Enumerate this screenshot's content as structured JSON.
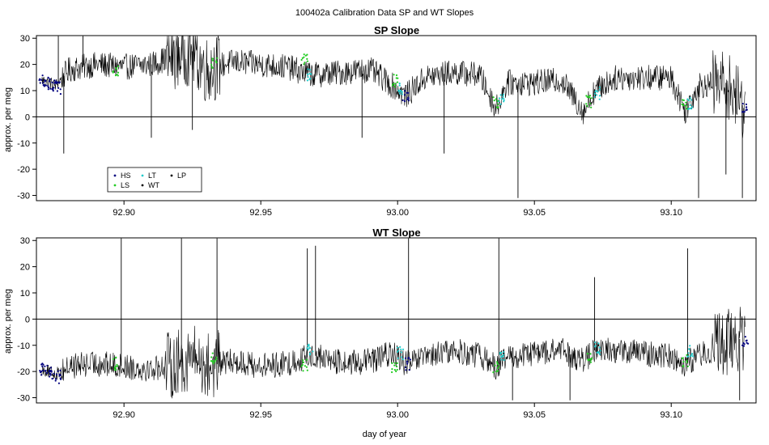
{
  "figure": {
    "suptitle": "100402a   Calibration Data SP and WT Slopes",
    "xlabel": "day of year"
  },
  "colors": {
    "HS": "#000080",
    "LS": "#22cc22",
    "LT": "#22cccc",
    "WT": "#000000",
    "LP": "#000000",
    "trace": "#000000",
    "axis": "#000000"
  },
  "legend": {
    "placement": "bottom-left of top panel",
    "entries": [
      {
        "label": "HS",
        "color": "#000080"
      },
      {
        "label": "LT",
        "color": "#22cccc"
      },
      {
        "label": "LP",
        "color": "#000000"
      },
      {
        "label": "LS",
        "color": "#22cc22"
      },
      {
        "label": "WT",
        "color": "#000000"
      }
    ]
  },
  "chart_data": [
    {
      "type": "line",
      "title": "SP Slope",
      "xlabel": "",
      "ylabel": "approx. per meg",
      "xlim": [
        92.868,
        93.131
      ],
      "ylim": [
        -32,
        31
      ],
      "xticks": [
        "92.90",
        "92.95",
        "93.00",
        "93.05",
        "93.10"
      ],
      "xtick_values": [
        92.9,
        92.95,
        93.0,
        93.05,
        93.1
      ],
      "yticks": [
        -30,
        -20,
        -10,
        0,
        10,
        20,
        30
      ],
      "hline": 0,
      "series": [
        {
          "type": "line",
          "x": [
            92.87,
            92.875,
            92.88,
            92.89,
            92.9,
            92.91,
            92.92,
            92.925,
            92.93,
            92.94,
            92.95,
            92.96,
            92.965,
            92.97,
            92.98,
            92.99,
            92.998,
            93.003,
            93.01,
            93.02,
            93.03,
            93.036,
            93.04,
            93.05,
            93.06,
            93.068,
            93.072,
            93.08,
            93.09,
            93.1,
            93.105,
            93.11,
            93.12,
            93.127
          ],
          "y": [
            14,
            12,
            18,
            20,
            19,
            20,
            24,
            25,
            18,
            21,
            20,
            19,
            17,
            16,
            17,
            18,
            12,
            8,
            15,
            17,
            16,
            3,
            13,
            13,
            14,
            2,
            10,
            15,
            15,
            15,
            2,
            12,
            13,
            3
          ]
        },
        {
          "type": "scatter",
          "name": "HS",
          "x": [
            92.87,
            92.872,
            92.874,
            92.876,
            93.003,
            93.127
          ],
          "y": [
            14,
            13,
            12,
            11,
            8,
            4
          ]
        },
        {
          "type": "scatter",
          "name": "LS",
          "x": [
            92.897,
            92.933,
            92.966,
            92.999,
            93.036,
            93.07,
            93.105
          ],
          "y": [
            17,
            21,
            22,
            14,
            6,
            6,
            4
          ]
        },
        {
          "type": "scatter",
          "name": "LT",
          "x": [
            92.968,
            93.001,
            93.038,
            93.073,
            93.107
          ],
          "y": [
            16,
            11,
            7,
            9,
            5
          ]
        }
      ],
      "spikes": [
        {
          "x": 92.876,
          "y": 31
        },
        {
          "x": 92.878,
          "y": -14
        },
        {
          "x": 92.885,
          "y": 31
        },
        {
          "x": 92.91,
          "y": -8
        },
        {
          "x": 92.925,
          "y": -5
        },
        {
          "x": 92.987,
          "y": -8
        },
        {
          "x": 93.017,
          "y": -14
        },
        {
          "x": 93.044,
          "y": -31
        },
        {
          "x": 93.11,
          "y": -31
        },
        {
          "x": 93.12,
          "y": -22
        },
        {
          "x": 93.126,
          "y": -31
        }
      ]
    },
    {
      "type": "line",
      "title": "WT Slope",
      "xlabel": "day of year",
      "ylabel": "approx. per meg",
      "xlim": [
        92.868,
        93.131
      ],
      "ylim": [
        -32,
        31
      ],
      "xticks": [
        "92.90",
        "92.95",
        "93.00",
        "93.05",
        "93.10"
      ],
      "xtick_values": [
        92.9,
        92.95,
        93.0,
        93.05,
        93.1
      ],
      "yticks": [
        -30,
        -20,
        -10,
        0,
        10,
        20,
        30
      ],
      "hline": 0,
      "series": [
        {
          "type": "line",
          "x": [
            92.87,
            92.875,
            92.88,
            92.89,
            92.9,
            92.91,
            92.92,
            92.925,
            92.93,
            92.94,
            92.95,
            92.96,
            92.965,
            92.97,
            92.98,
            92.99,
            92.998,
            93.003,
            93.01,
            93.02,
            93.03,
            93.036,
            93.04,
            93.05,
            93.06,
            93.068,
            93.072,
            93.08,
            93.09,
            93.1,
            93.105,
            93.11,
            93.12,
            93.127
          ],
          "y": [
            -19,
            -21,
            -18,
            -17,
            -18,
            -19,
            -17,
            -14,
            -18,
            -16,
            -18,
            -17,
            -15,
            -14,
            -17,
            -16,
            -13,
            -17,
            -15,
            -12,
            -14,
            -18,
            -15,
            -13,
            -12,
            -16,
            -12,
            -12,
            -13,
            -14,
            -17,
            -14,
            -9,
            -7
          ]
        },
        {
          "type": "scatter",
          "name": "HS",
          "x": [
            92.87,
            92.872,
            92.874,
            92.876,
            93.004,
            93.127
          ],
          "y": [
            -19,
            -20,
            -21,
            -22,
            -17,
            -8
          ]
        },
        {
          "type": "scatter",
          "name": "LS",
          "x": [
            92.897,
            92.933,
            92.966,
            92.999,
            93.036,
            93.07,
            93.105
          ],
          "y": [
            -17,
            -15,
            -18,
            -18,
            -18,
            -14,
            -16
          ]
        },
        {
          "type": "scatter",
          "name": "LT",
          "x": [
            92.968,
            93.001,
            93.038,
            93.073,
            93.107
          ],
          "y": [
            -12,
            -13,
            -14,
            -11,
            -12
          ]
        }
      ],
      "spikes": [
        {
          "x": 92.899,
          "y": 31
        },
        {
          "x": 92.921,
          "y": 31
        },
        {
          "x": 92.934,
          "y": 31
        },
        {
          "x": 92.967,
          "y": 27
        },
        {
          "x": 92.97,
          "y": 28
        },
        {
          "x": 93.004,
          "y": 31
        },
        {
          "x": 93.037,
          "y": 31
        },
        {
          "x": 93.042,
          "y": -31
        },
        {
          "x": 93.063,
          "y": -31
        },
        {
          "x": 93.072,
          "y": 16
        },
        {
          "x": 93.106,
          "y": 27
        },
        {
          "x": 93.125,
          "y": -31
        }
      ]
    }
  ]
}
